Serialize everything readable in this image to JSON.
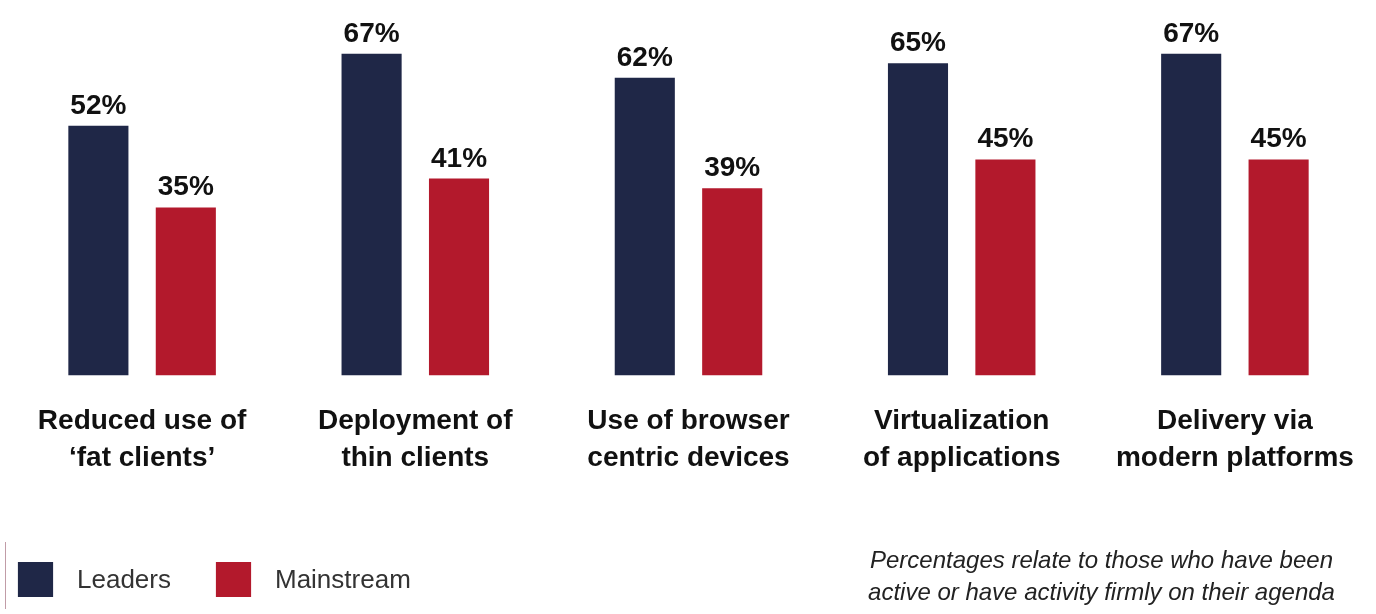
{
  "chart_data": {
    "type": "bar",
    "categories": [
      "Reduced use of\n‘fat clients’",
      "Deployment of\nthin clients",
      "Use of browser\ncentric devices",
      "Virtualization\nof applications",
      "Delivery via\nmodern platforms"
    ],
    "series": [
      {
        "name": "Leaders",
        "color": "#1f2747",
        "values": [
          52,
          67,
          62,
          65,
          67
        ],
        "value_labels": [
          "52%",
          "67%",
          "62%",
          "65%",
          "67%"
        ]
      },
      {
        "name": "Mainstream",
        "color": "#b3192c",
        "values": [
          35,
          41,
          39,
          45,
          45
        ],
        "value_labels": [
          "35%",
          "41%",
          "39%",
          "45%",
          "45%"
        ]
      }
    ],
    "legend": "bottom left",
    "annotations": [
      "Percentages relate to those who have been active or have activity firmly on their agenda"
    ]
  }
}
